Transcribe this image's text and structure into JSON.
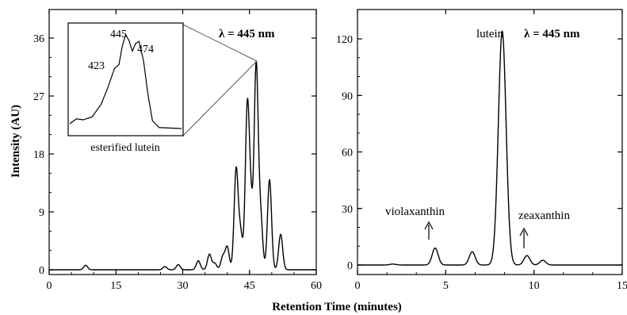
{
  "shared_xlabel": "Retention Time (minutes)",
  "chart_data": [
    {
      "type": "line",
      "panel": "left",
      "ylabel": "Intensity (AU)",
      "xlim": [
        0,
        60
      ],
      "ylim": [
        -1,
        40
      ],
      "xticks": [
        0,
        15,
        30,
        45,
        60
      ],
      "yticks": [
        0,
        9,
        18,
        27,
        36
      ],
      "annotation": "λ = 445 nm",
      "peaks": [
        {
          "x": 8.2,
          "y": 0.7
        },
        {
          "x": 26.0,
          "y": 0.5
        },
        {
          "x": 29.0,
          "y": 0.8
        },
        {
          "x": 33.5,
          "y": 1.4
        },
        {
          "x": 36.0,
          "y": 2.4
        },
        {
          "x": 37.2,
          "y": 1.0
        },
        {
          "x": 39.0,
          "y": 2.0
        },
        {
          "x": 40.0,
          "y": 3.5
        },
        {
          "x": 42.0,
          "y": 15.5
        },
        {
          "x": 43.0,
          "y": 5.5
        },
        {
          "x": 44.5,
          "y": 24.5
        },
        {
          "x": 45.3,
          "y": 9.0
        },
        {
          "x": 46.5,
          "y": 31.5
        },
        {
          "x": 47.5,
          "y": 8.0
        },
        {
          "x": 49.5,
          "y": 14.0
        },
        {
          "x": 52.0,
          "y": 5.5
        }
      ],
      "inset": {
        "label": "esterified lutein",
        "peak_labels": [
          "423",
          "445",
          "474"
        ],
        "spectrum": [
          {
            "x": 0.0,
            "y": 0.05
          },
          {
            "x": 0.06,
            "y": 0.1
          },
          {
            "x": 0.12,
            "y": 0.09
          },
          {
            "x": 0.2,
            "y": 0.12
          },
          {
            "x": 0.28,
            "y": 0.25
          },
          {
            "x": 0.34,
            "y": 0.42
          },
          {
            "x": 0.4,
            "y": 0.62
          },
          {
            "x": 0.44,
            "y": 0.66
          },
          {
            "x": 0.47,
            "y": 0.85
          },
          {
            "x": 0.5,
            "y": 0.97
          },
          {
            "x": 0.53,
            "y": 0.91
          },
          {
            "x": 0.56,
            "y": 0.8
          },
          {
            "x": 0.59,
            "y": 0.88
          },
          {
            "x": 0.62,
            "y": 0.9
          },
          {
            "x": 0.66,
            "y": 0.7
          },
          {
            "x": 0.7,
            "y": 0.35
          },
          {
            "x": 0.74,
            "y": 0.08
          },
          {
            "x": 0.8,
            "y": 0.01
          },
          {
            "x": 1.0,
            "y": 0.0
          }
        ]
      }
    },
    {
      "type": "line",
      "panel": "right",
      "xlim": [
        0,
        15
      ],
      "ylim": [
        -3,
        130
      ],
      "xticks": [
        0,
        5,
        10,
        15
      ],
      "yticks": [
        0,
        30,
        60,
        90,
        120
      ],
      "annotation": "λ = 445 nm",
      "peaks": [
        {
          "x": 2.0,
          "y": 0.5
        },
        {
          "x": 4.4,
          "y": 9.0
        },
        {
          "x": 6.5,
          "y": 7.0
        },
        {
          "x": 8.2,
          "y": 124.0
        },
        {
          "x": 9.6,
          "y": 5.0
        },
        {
          "x": 10.5,
          "y": 2.5
        }
      ],
      "labels": [
        {
          "text": "lutein",
          "x": 8.2
        },
        {
          "text": "violaxanthin",
          "x": 4.4
        },
        {
          "text": "zeaxanthin",
          "x": 9.6
        }
      ]
    }
  ]
}
